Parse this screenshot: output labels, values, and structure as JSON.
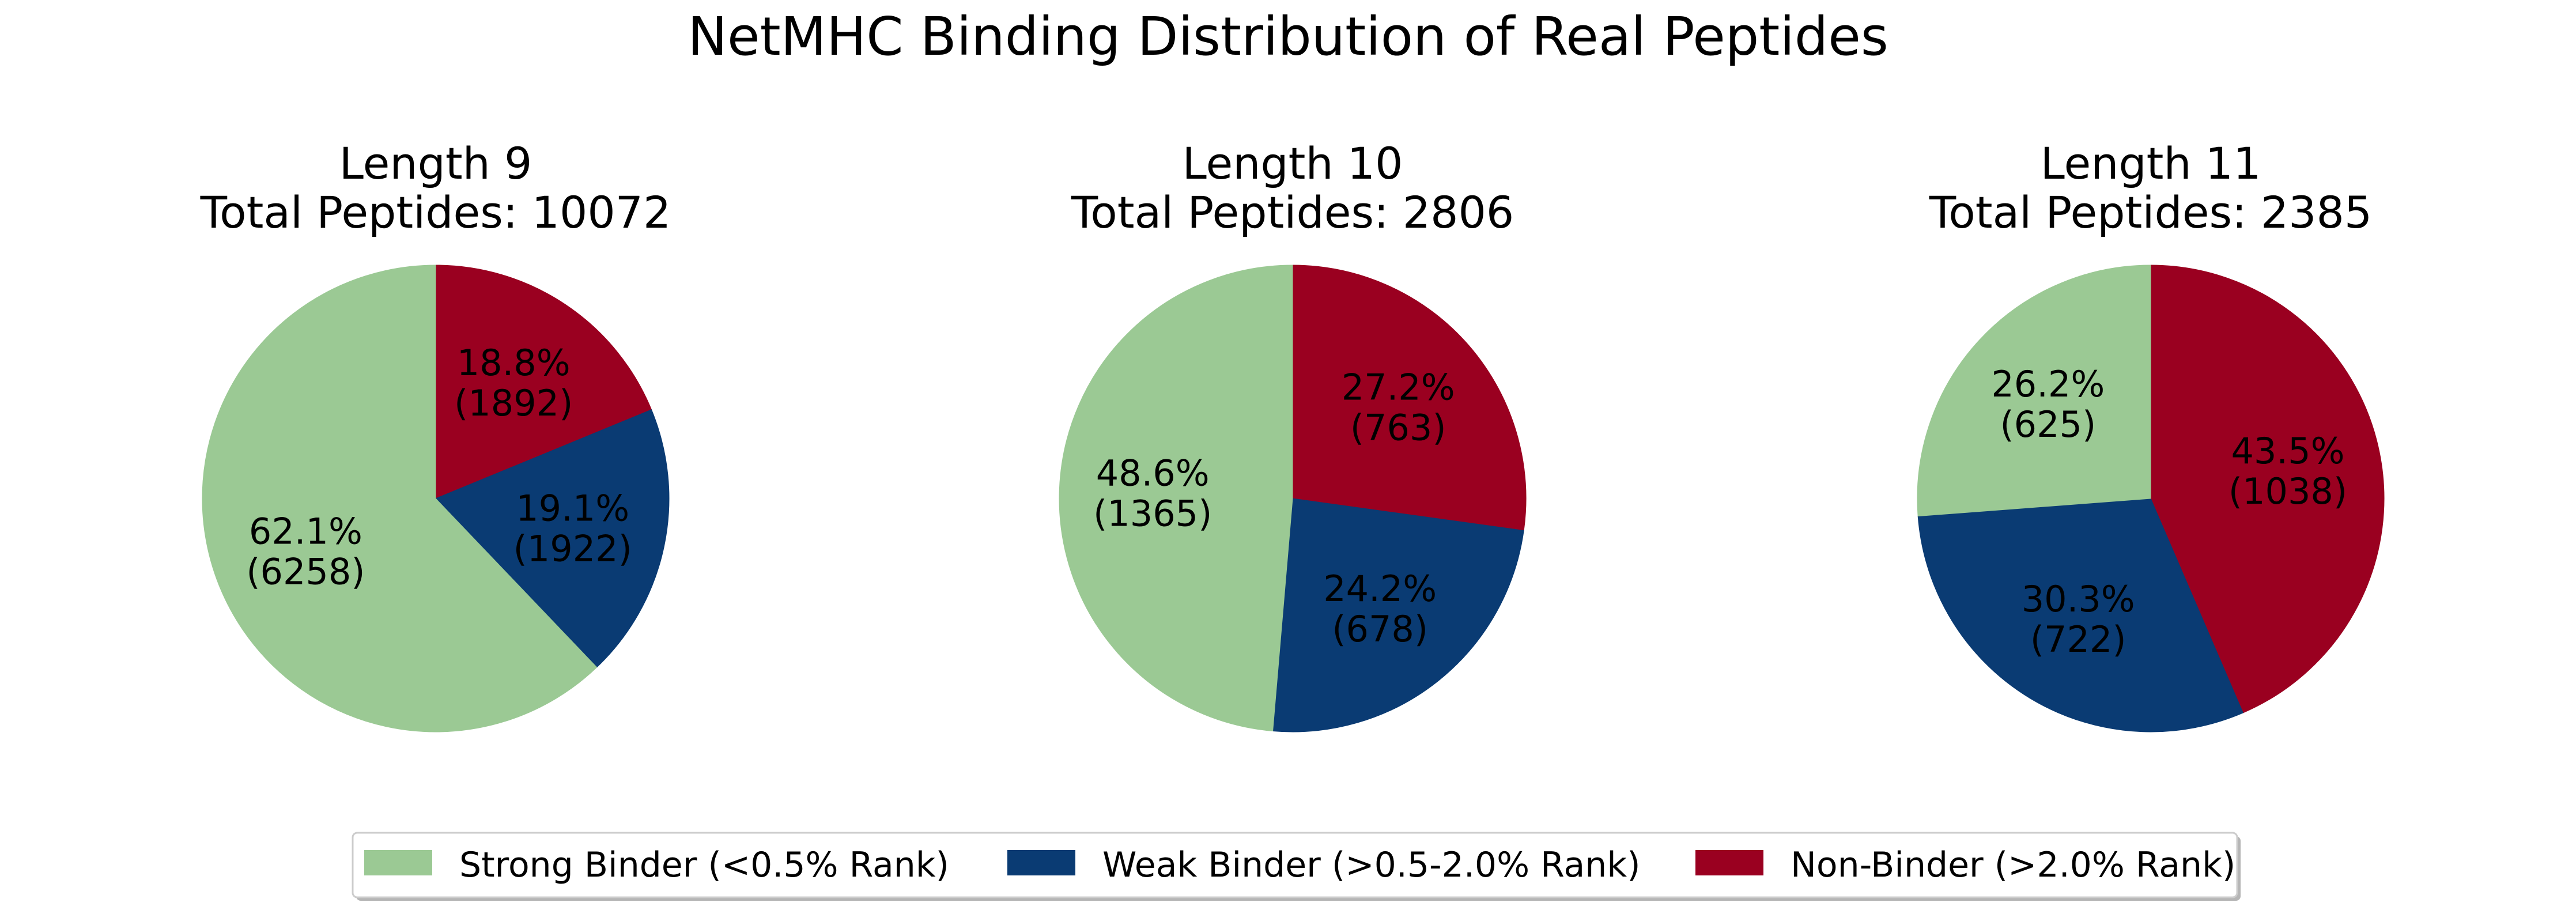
{
  "chart_data": {
    "type": "pie",
    "title": "NetMHC Binding Distribution of Real Peptides",
    "legend": {
      "position": "bottom-center",
      "entries": [
        {
          "label": "Strong Binder (<0.5% Rank)",
          "color": "#9bc994"
        },
        {
          "label": "Weak Binder (>0.5-2.0% Rank)",
          "color": "#0a3b73"
        },
        {
          "label": "Non-Binder (>2.0% Rank)",
          "color": "#9a0020"
        }
      ]
    },
    "pies": [
      {
        "title_line1": "Length 9",
        "title_line2": "Total Peptides: 10072",
        "slices": [
          {
            "label": "Non-Binder (>2.0% Rank)",
            "value": 1892,
            "percent": "18.8%",
            "count": "(1892)",
            "color": "#9a0020"
          },
          {
            "label": "Weak Binder (>0.5-2.0% Rank)",
            "value": 1922,
            "percent": "19.1%",
            "count": "(1922)",
            "color": "#0a3b73"
          },
          {
            "label": "Strong Binder (<0.5% Rank)",
            "value": 6258,
            "percent": "62.1%",
            "count": "(6258)",
            "color": "#9bc994"
          }
        ]
      },
      {
        "title_line1": "Length 10",
        "title_line2": "Total Peptides: 2806",
        "slices": [
          {
            "label": "Non-Binder (>2.0% Rank)",
            "value": 763,
            "percent": "27.2%",
            "count": "(763)",
            "color": "#9a0020"
          },
          {
            "label": "Weak Binder (>0.5-2.0% Rank)",
            "value": 678,
            "percent": "24.2%",
            "count": "(678)",
            "color": "#0a3b73"
          },
          {
            "label": "Strong Binder (<0.5% Rank)",
            "value": 1365,
            "percent": "48.6%",
            "count": "(1365)",
            "color": "#9bc994"
          }
        ]
      },
      {
        "title_line1": "Length 11",
        "title_line2": "Total Peptides: 2385",
        "slices": [
          {
            "label": "Non-Binder (>2.0% Rank)",
            "value": 1038,
            "percent": "43.5%",
            "count": "(1038)",
            "color": "#9a0020"
          },
          {
            "label": "Weak Binder (>0.5-2.0% Rank)",
            "value": 722,
            "percent": "30.3%",
            "count": "(722)",
            "color": "#0a3b73"
          },
          {
            "label": "Strong Binder (<0.5% Rank)",
            "value": 625,
            "percent": "26.2%",
            "count": "(625)",
            "color": "#9bc994"
          }
        ]
      }
    ]
  }
}
